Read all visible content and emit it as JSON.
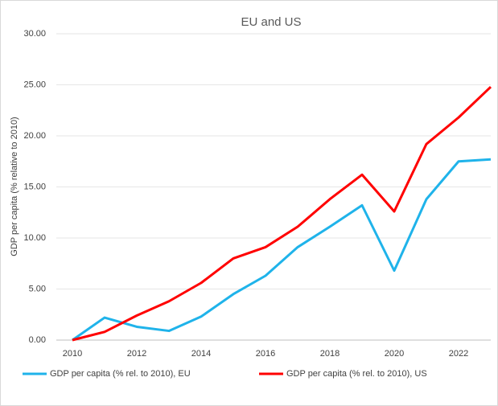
{
  "chart_data": {
    "type": "line",
    "title": "EU and US",
    "ylabel": "GDP per capita  (% relative to 2010)",
    "x": [
      2010,
      2011,
      2012,
      2013,
      2014,
      2015,
      2016,
      2017,
      2018,
      2019,
      2020,
      2021,
      2022,
      2023
    ],
    "series": [
      {
        "name": "GDP per capita (% rel. to 2010), EU",
        "color": "#1fb3ea",
        "values": [
          0,
          2.2,
          1.3,
          0.9,
          2.3,
          4.5,
          6.3,
          9.1,
          11.1,
          13.2,
          6.8,
          13.8,
          17.5,
          17.7
        ]
      },
      {
        "name": "GDP per capita (% rel. to 2010), US",
        "color": "#ff0000",
        "values": [
          0,
          0.8,
          2.4,
          3.8,
          5.6,
          8.0,
          9.1,
          11.1,
          13.8,
          16.2,
          12.6,
          19.2,
          21.8,
          24.8
        ]
      }
    ],
    "xlim": [
      2010,
      2023
    ],
    "xticks": [
      2010,
      2012,
      2014,
      2016,
      2018,
      2020,
      2022
    ],
    "ylim": [
      0,
      30
    ],
    "yticks": [
      {
        "value": 0,
        "label": "0.00"
      },
      {
        "value": 5,
        "label": "5.00"
      },
      {
        "value": 10,
        "label": "10.00"
      },
      {
        "value": 15,
        "label": "15.00"
      },
      {
        "value": 20,
        "label": "20.00"
      },
      {
        "value": 25,
        "label": "25.00"
      },
      {
        "value": 30,
        "label": "30.00"
      }
    ],
    "grid": true,
    "legend": "bottom"
  }
}
